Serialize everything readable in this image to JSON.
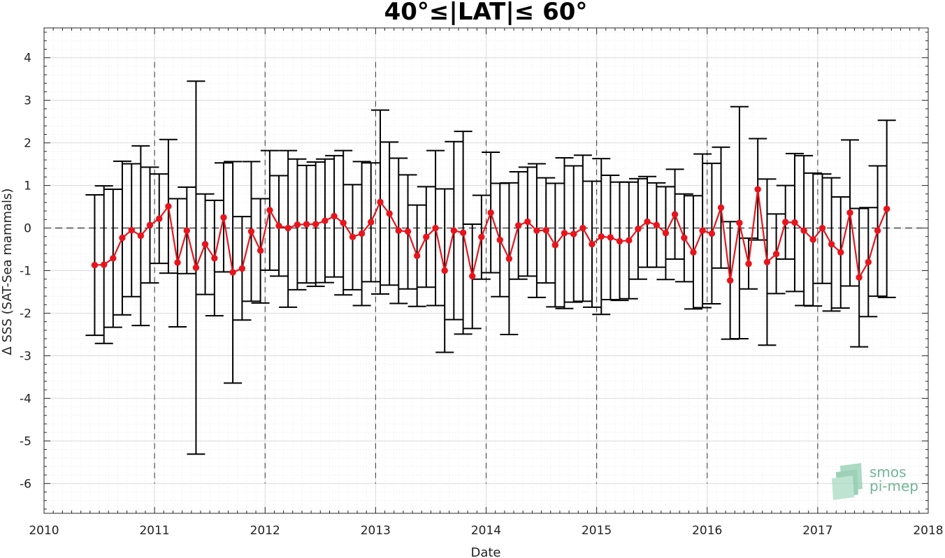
{
  "chart_data": {
    "type": "line",
    "title": "40°≤|LAT|≤ 60°",
    "xlabel": "Date",
    "ylabel": "Δ SSS (SAT-Sea mammals)",
    "xlim": [
      2010,
      2018
    ],
    "ylim": [
      -6.7,
      4.7
    ],
    "x_ticks": [
      "2010",
      "2011",
      "2012",
      "2013",
      "2014",
      "2015",
      "2016",
      "2017",
      "2018"
    ],
    "y_ticks": [
      "4",
      "3",
      "2",
      "1",
      "0",
      "-1",
      "-2",
      "-3",
      "-4",
      "-5",
      "-6"
    ],
    "grid": true,
    "reference_line_y": 0,
    "year_markers": [
      2011,
      2012,
      2013,
      2014,
      2015,
      2016,
      2017
    ],
    "series": [
      {
        "color": "#e8141c",
        "points": [
          {
            "x": 2010.458,
            "y": -0.87,
            "low": -2.52,
            "high": 0.78
          },
          {
            "x": 2010.542,
            "y": -0.86,
            "low": -2.71,
            "high": 0.99
          },
          {
            "x": 2010.625,
            "y": -0.71,
            "low": -2.33,
            "high": 0.91
          },
          {
            "x": 2010.708,
            "y": -0.23,
            "low": -2.04,
            "high": 1.57
          },
          {
            "x": 2010.792,
            "y": -0.05,
            "low": -1.61,
            "high": 1.51
          },
          {
            "x": 2010.875,
            "y": -0.18,
            "low": -2.29,
            "high": 1.93
          },
          {
            "x": 2010.958,
            "y": 0.07,
            "low": -1.29,
            "high": 1.43
          },
          {
            "x": 2011.042,
            "y": 0.22,
            "low": -0.83,
            "high": 1.27
          },
          {
            "x": 2011.125,
            "y": 0.51,
            "low": -1.06,
            "high": 2.08
          },
          {
            "x": 2011.208,
            "y": -0.81,
            "low": -2.32,
            "high": 0.69
          },
          {
            "x": 2011.292,
            "y": -0.06,
            "low": -1.07,
            "high": 0.96
          },
          {
            "x": 2011.375,
            "y": -0.93,
            "low": -5.31,
            "high": 3.45
          },
          {
            "x": 2011.458,
            "y": -0.38,
            "low": -1.56,
            "high": 0.8
          },
          {
            "x": 2011.542,
            "y": -0.71,
            "low": -2.06,
            "high": 0.65
          },
          {
            "x": 2011.625,
            "y": 0.25,
            "low": -1.03,
            "high": 1.53
          },
          {
            "x": 2011.708,
            "y": -1.04,
            "low": -3.64,
            "high": 1.56
          },
          {
            "x": 2011.792,
            "y": -0.95,
            "low": -2.16,
            "high": 0.27
          },
          {
            "x": 2011.875,
            "y": -0.08,
            "low": -1.72,
            "high": 1.56
          },
          {
            "x": 2011.958,
            "y": -0.53,
            "low": -1.76,
            "high": 0.69
          },
          {
            "x": 2012.042,
            "y": 0.42,
            "low": -0.99,
            "high": 1.82
          },
          {
            "x": 2012.125,
            "y": 0.05,
            "low": -1.13,
            "high": 1.23
          },
          {
            "x": 2012.208,
            "y": 0.0,
            "low": -1.86,
            "high": 1.82
          },
          {
            "x": 2012.292,
            "y": 0.08,
            "low": -1.45,
            "high": 1.62
          },
          {
            "x": 2012.375,
            "y": 0.09,
            "low": -1.29,
            "high": 1.47
          },
          {
            "x": 2012.458,
            "y": 0.09,
            "low": -1.37,
            "high": 1.55
          },
          {
            "x": 2012.542,
            "y": 0.17,
            "low": -1.28,
            "high": 1.62
          },
          {
            "x": 2012.625,
            "y": 0.28,
            "low": -1.15,
            "high": 1.7
          },
          {
            "x": 2012.708,
            "y": 0.12,
            "low": -1.57,
            "high": 1.82
          },
          {
            "x": 2012.792,
            "y": -0.21,
            "low": -1.45,
            "high": 1.02
          },
          {
            "x": 2012.875,
            "y": -0.13,
            "low": -1.82,
            "high": 1.56
          },
          {
            "x": 2012.958,
            "y": 0.14,
            "low": -1.26,
            "high": 1.53
          },
          {
            "x": 2013.042,
            "y": 0.61,
            "low": -1.55,
            "high": 2.77
          },
          {
            "x": 2013.125,
            "y": 0.34,
            "low": -1.34,
            "high": 2.02
          },
          {
            "x": 2013.208,
            "y": -0.06,
            "low": -1.77,
            "high": 1.64
          },
          {
            "x": 2013.292,
            "y": -0.08,
            "low": -1.43,
            "high": 1.25
          },
          {
            "x": 2013.375,
            "y": -0.65,
            "low": -1.84,
            "high": 0.54
          },
          {
            "x": 2013.458,
            "y": -0.21,
            "low": -1.39,
            "high": 0.97
          },
          {
            "x": 2013.542,
            "y": 0.0,
            "low": -1.82,
            "high": 1.82
          },
          {
            "x": 2013.625,
            "y": -1.0,
            "low": -2.92,
            "high": 0.92
          },
          {
            "x": 2013.708,
            "y": -0.06,
            "low": -2.15,
            "high": 2.03
          },
          {
            "x": 2013.792,
            "y": -0.11,
            "low": -2.49,
            "high": 2.27
          },
          {
            "x": 2013.875,
            "y": -1.13,
            "low": -2.36,
            "high": 0.09
          },
          {
            "x": 2013.958,
            "y": -0.21,
            "low": -1.2,
            "high": 0.77
          },
          {
            "x": 2014.042,
            "y": 0.36,
            "low": -1.05,
            "high": 1.78
          },
          {
            "x": 2014.125,
            "y": -0.28,
            "low": -1.61,
            "high": 1.05
          },
          {
            "x": 2014.208,
            "y": -0.72,
            "low": -2.5,
            "high": 1.06
          },
          {
            "x": 2014.292,
            "y": 0.06,
            "low": -1.2,
            "high": 1.32
          },
          {
            "x": 2014.375,
            "y": 0.15,
            "low": -1.13,
            "high": 1.43
          },
          {
            "x": 2014.458,
            "y": -0.06,
            "low": -1.63,
            "high": 1.51
          },
          {
            "x": 2014.542,
            "y": -0.05,
            "low": -1.29,
            "high": 1.18
          },
          {
            "x": 2014.625,
            "y": -0.4,
            "low": -1.85,
            "high": 1.05
          },
          {
            "x": 2014.708,
            "y": -0.12,
            "low": -1.89,
            "high": 1.65
          },
          {
            "x": 2014.792,
            "y": -0.14,
            "low": -1.74,
            "high": 1.46
          },
          {
            "x": 2014.875,
            "y": 0.0,
            "low": -1.72,
            "high": 1.71
          },
          {
            "x": 2014.958,
            "y": -0.38,
            "low": -1.86,
            "high": 1.1
          },
          {
            "x": 2015.042,
            "y": -0.2,
            "low": -2.03,
            "high": 1.63
          },
          {
            "x": 2015.125,
            "y": -0.22,
            "low": -1.68,
            "high": 1.24
          },
          {
            "x": 2015.208,
            "y": -0.31,
            "low": -1.7,
            "high": 1.08
          },
          {
            "x": 2015.292,
            "y": -0.29,
            "low": -1.66,
            "high": 1.08
          },
          {
            "x": 2015.375,
            "y": -0.02,
            "low": -1.2,
            "high": 1.16
          },
          {
            "x": 2015.458,
            "y": 0.15,
            "low": -0.92,
            "high": 1.21
          },
          {
            "x": 2015.542,
            "y": 0.07,
            "low": -0.92,
            "high": 1.06
          },
          {
            "x": 2015.625,
            "y": -0.12,
            "low": -1.21,
            "high": 0.97
          },
          {
            "x": 2015.708,
            "y": 0.32,
            "low": -0.73,
            "high": 1.38
          },
          {
            "x": 2015.792,
            "y": -0.23,
            "low": -1.26,
            "high": 0.8
          },
          {
            "x": 2015.875,
            "y": -0.57,
            "low": -1.9,
            "high": 0.76
          },
          {
            "x": 2015.958,
            "y": -0.06,
            "low": -1.87,
            "high": 1.74
          },
          {
            "x": 2016.042,
            "y": -0.13,
            "low": -1.78,
            "high": 1.52
          },
          {
            "x": 2016.125,
            "y": 0.48,
            "low": -0.94,
            "high": 1.9
          },
          {
            "x": 2016.208,
            "y": -1.23,
            "low": -2.61,
            "high": 0.15
          },
          {
            "x": 2016.292,
            "y": 0.12,
            "low": -2.6,
            "high": 2.85
          },
          {
            "x": 2016.375,
            "y": -0.84,
            "low": -1.43,
            "high": -0.24
          },
          {
            "x": 2016.458,
            "y": 0.91,
            "low": -0.28,
            "high": 2.1
          },
          {
            "x": 2016.542,
            "y": -0.8,
            "low": -2.75,
            "high": 1.15
          },
          {
            "x": 2016.625,
            "y": -0.61,
            "low": -1.54,
            "high": 0.33
          },
          {
            "x": 2016.708,
            "y": 0.14,
            "low": -0.73,
            "high": 1.0
          },
          {
            "x": 2016.792,
            "y": 0.13,
            "low": -1.49,
            "high": 1.75
          },
          {
            "x": 2016.875,
            "y": -0.06,
            "low": -1.82,
            "high": 1.7
          },
          {
            "x": 2016.958,
            "y": -0.27,
            "low": -1.83,
            "high": 1.29
          },
          {
            "x": 2017.042,
            "y": 0.0,
            "low": -1.3,
            "high": 1.27
          },
          {
            "x": 2017.125,
            "y": -0.38,
            "low": -1.95,
            "high": 1.18
          },
          {
            "x": 2017.208,
            "y": -0.57,
            "low": -1.88,
            "high": 0.73
          },
          {
            "x": 2017.292,
            "y": 0.36,
            "low": -1.36,
            "high": 2.07
          },
          {
            "x": 2017.375,
            "y": -1.16,
            "low": -2.79,
            "high": 0.46
          },
          {
            "x": 2017.458,
            "y": -0.8,
            "low": -2.08,
            "high": 0.48
          },
          {
            "x": 2017.542,
            "y": -0.06,
            "low": -1.6,
            "high": 1.46
          },
          {
            "x": 2017.625,
            "y": 0.45,
            "low": -1.63,
            "high": 2.53
          }
        ]
      }
    ]
  },
  "logo": {
    "line1": "smos",
    "line2": "pi-mep",
    "color": "#6fb596"
  }
}
